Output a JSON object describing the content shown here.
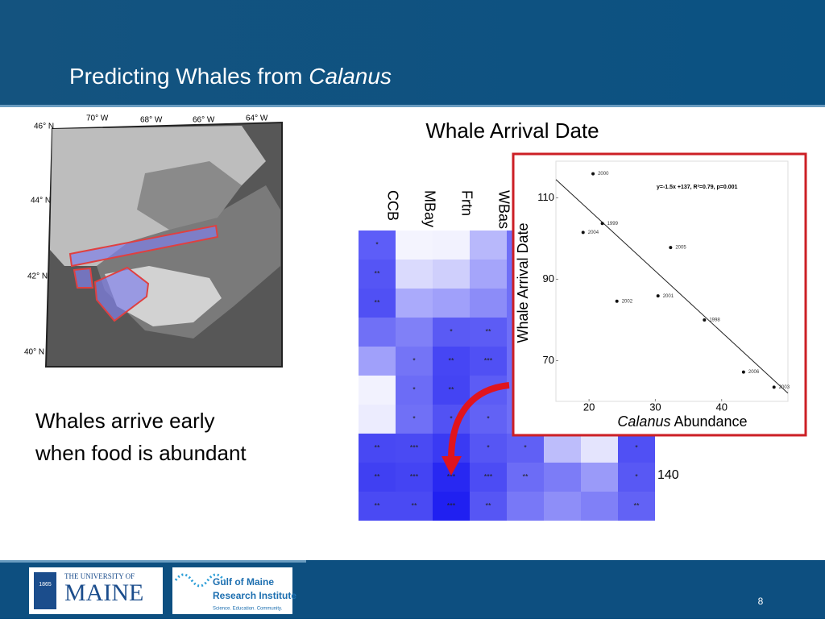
{
  "header": {
    "title": "Predicting Whales from ",
    "title_italic": "Calanus"
  },
  "map": {
    "lat_labels": [
      "46° N",
      "44° N",
      "42° N",
      "40° N"
    ],
    "lon_labels": [
      "70° W",
      "68° W",
      "66° W",
      "64° W"
    ]
  },
  "statement": [
    "Whales arrive early",
    "when food is abundant"
  ],
  "heatmap": {
    "title": "Whale Arrival Date",
    "columns": [
      "CCB",
      "MBay",
      "Frtn",
      "WBas"
    ],
    "row_label": "140",
    "rows": [
      {
        "colors": [
          "#5d5df8",
          "#f4f4fe",
          "#f2f2fe",
          "#b8b8fb",
          "#6f6ff7",
          "#6f6ff7",
          "#6f6ff7",
          "#6f6ff7"
        ],
        "stars": [
          "*",
          null,
          null,
          null,
          null,
          null,
          null,
          null
        ]
      },
      {
        "colors": [
          "#5555f5",
          "#dadafd",
          "#cfcffc",
          "#a5a5fa",
          "#6f6ff7",
          "#6f6ff7",
          "#6f6ff7",
          "#6f6ff7"
        ],
        "stars": [
          "**",
          null,
          null,
          null,
          null,
          null,
          null,
          null
        ]
      },
      {
        "colors": [
          "#5050f4",
          "#aaaafb",
          "#a0a0fa",
          "#8c8cf8",
          "#6f6ff7",
          "#6f6ff7",
          "#6f6ff7",
          "#6f6ff7"
        ],
        "stars": [
          "**",
          null,
          null,
          null,
          null,
          null,
          null,
          null
        ]
      },
      {
        "colors": [
          "#7070f6",
          "#8080f7",
          "#5a5af4",
          "#5c5cf5",
          "#6f6ff7",
          "#6f6ff7",
          "#6f6ff7",
          "#6f6ff7"
        ],
        "stars": [
          null,
          null,
          "*",
          "**",
          null,
          null,
          null,
          null
        ]
      },
      {
        "colors": [
          "#a0a0fa",
          "#7474f6",
          "#4646f4",
          "#5050f4",
          "#6f6ff7",
          "#6f6ff7",
          "#6f6ff7",
          "#6f6ff7"
        ],
        "stars": [
          null,
          "*",
          "**",
          "***",
          null,
          null,
          null,
          null
        ]
      },
      {
        "colors": [
          "#f2f2fe",
          "#6c6cf6",
          "#4444f3",
          "#5c5cf5",
          "#6f6ff7",
          "#6f6ff7",
          "#6f6ff7",
          "#6f6ff7"
        ],
        "stars": [
          null,
          "*",
          "**",
          "*",
          null,
          null,
          null,
          null
        ]
      },
      {
        "colors": [
          "#ececfe",
          "#7070f6",
          "#5252f4",
          "#6262f5",
          "#6f6ff7",
          "#6f6ff7",
          "#6f6ff7",
          "#6f6ff7"
        ],
        "stars": [
          null,
          "*",
          "*",
          "*",
          null,
          null,
          null,
          null
        ]
      },
      {
        "colors": [
          "#4848f3",
          "#4a4af3",
          "#3a3af3",
          "#5656f4",
          "#6060f5",
          "#bdbdfb",
          "#e4e4fd",
          "#5050f4"
        ],
        "stars": [
          "**",
          "***",
          "*",
          "*",
          "*",
          null,
          null,
          "*"
        ]
      },
      {
        "colors": [
          "#4040f2",
          "#4444f3",
          "#2828f2",
          "#4c4cf4",
          "#6c6cf6",
          "#7c7cf7",
          "#9a9af9",
          "#5858f4"
        ],
        "stars": [
          "**",
          "***",
          "***",
          "***",
          "**",
          null,
          null,
          "*"
        ]
      },
      {
        "colors": [
          "#4a4af3",
          "#4a4af3",
          "#2020f1",
          "#5656f4",
          "#7878f7",
          "#8e8ef8",
          "#8080f7",
          "#6262f5"
        ],
        "stars": [
          "**",
          "**",
          "***",
          "**",
          null,
          null,
          null,
          "**"
        ]
      }
    ]
  },
  "inset": {
    "type": "scatter",
    "y_label": "Whale Arrival Date",
    "x_label_italic": "Calanus",
    "x_label": " Abundance",
    "xlim": [
      15,
      50
    ],
    "ylim": [
      60,
      119
    ],
    "xticks": [
      20,
      30,
      40
    ],
    "yticks": [
      70,
      90,
      110
    ],
    "points": [
      {
        "label": "2000",
        "x": 20.6,
        "y": 115.9
      },
      {
        "label": "1999",
        "x": 22,
        "y": 103.7
      },
      {
        "label": "2004",
        "x": 19.1,
        "y": 101.5
      },
      {
        "label": "2005",
        "x": 32.3,
        "y": 97.8
      },
      {
        "label": "2002",
        "x": 24.2,
        "y": 84.6
      },
      {
        "label": "2001",
        "x": 30.4,
        "y": 85.9
      },
      {
        "label": "1998",
        "x": 37.4,
        "y": 80
      },
      {
        "label": "2006",
        "x": 43.3,
        "y": 67.2
      },
      {
        "label": "2003",
        "x": 47.9,
        "y": 63.5
      }
    ],
    "trend": {
      "text": "y=-1.5x +137, R²=0.79, p=0.001",
      "slope": -1.5,
      "intercept": 137
    }
  },
  "footer": {
    "umaine_year": "1865",
    "umaine_top": "THE UNIVERSITY OF",
    "umaine_name": "MAINE",
    "gmri_line1": "Gulf of Maine",
    "gmri_line2": "Research Institute",
    "gmri_tagline": "Science. Education. Community.",
    "page_number": "8"
  }
}
